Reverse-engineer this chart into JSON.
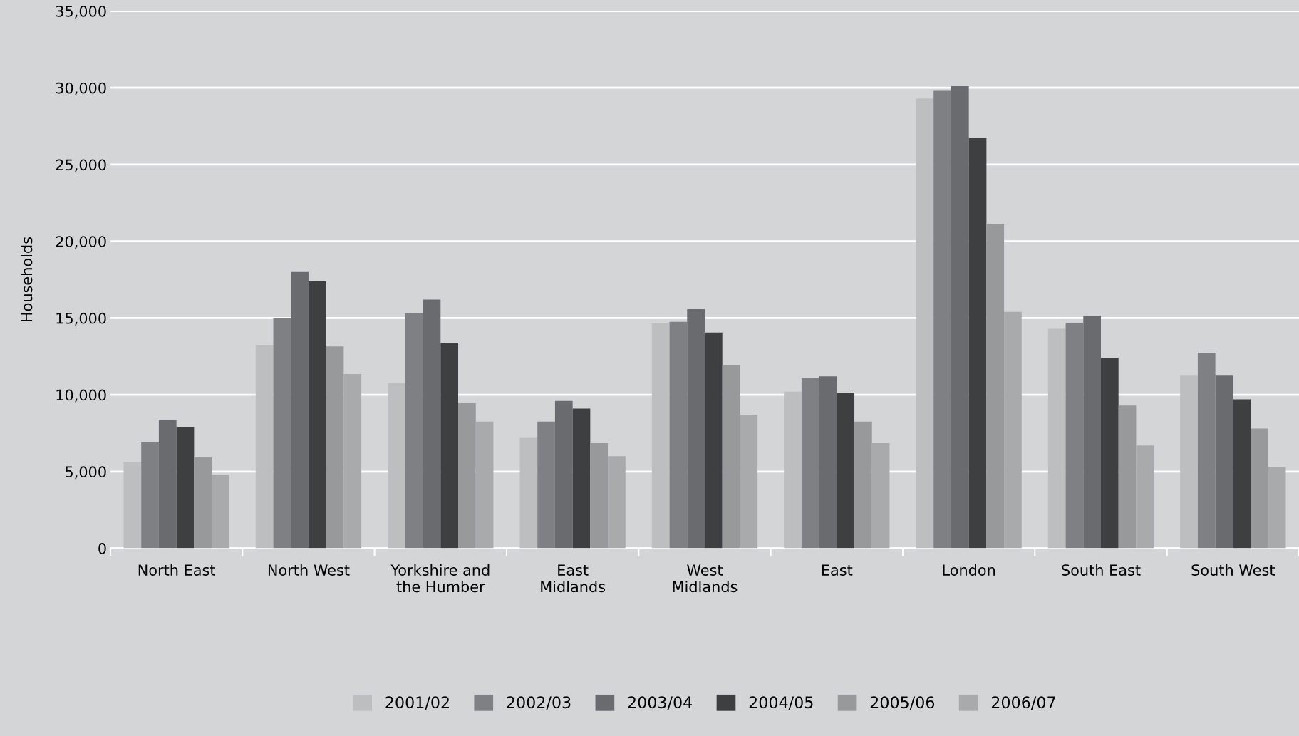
{
  "chart_data": {
    "type": "bar",
    "ylabel": "Households",
    "categories": [
      "North East",
      "North West",
      "Yorkshire and\nthe Humber",
      "East\nMidlands",
      "West\nMidlands",
      "East",
      "London",
      "South East",
      "South West"
    ],
    "series": [
      {
        "name": "2001/02",
        "color": "#bdbec0",
        "values": [
          5600,
          13250,
          10750,
          7200,
          14650,
          10200,
          29300,
          14300,
          11250
        ]
      },
      {
        "name": "2002/03",
        "color": "#7f8083",
        "values": [
          6900,
          15000,
          15300,
          8250,
          14750,
          11100,
          29800,
          14650,
          12750
        ]
      },
      {
        "name": "2003/04",
        "color": "#6a6b6e",
        "values": [
          8350,
          18000,
          16200,
          9600,
          15600,
          11200,
          30100,
          15150,
          11250
        ]
      },
      {
        "name": "2004/05",
        "color": "#3e3f41",
        "values": [
          7900,
          17400,
          13400,
          9100,
          14050,
          10150,
          26750,
          12400,
          9700
        ]
      },
      {
        "name": "2005/06",
        "color": "#98999b",
        "values": [
          5950,
          13150,
          9450,
          6850,
          11950,
          8250,
          21150,
          9300,
          7800
        ]
      },
      {
        "name": "2006/07",
        "color": "#a9aaac",
        "values": [
          4800,
          11350,
          8250,
          6000,
          8700,
          6850,
          15400,
          6700,
          5300
        ]
      }
    ],
    "ylim": [
      0,
      35000
    ],
    "yticks": [
      {
        "value": 0,
        "label": "0"
      },
      {
        "value": 5000,
        "label": "5,000"
      },
      {
        "value": 10000,
        "label": "10,000"
      },
      {
        "value": 15000,
        "label": "15,000"
      },
      {
        "value": 20000,
        "label": "20,000"
      },
      {
        "value": 25000,
        "label": "25,000"
      },
      {
        "value": 30000,
        "label": "30,000"
      },
      {
        "value": 35000,
        "label": "35,000"
      }
    ],
    "grid": "y",
    "legend": "bottom"
  }
}
